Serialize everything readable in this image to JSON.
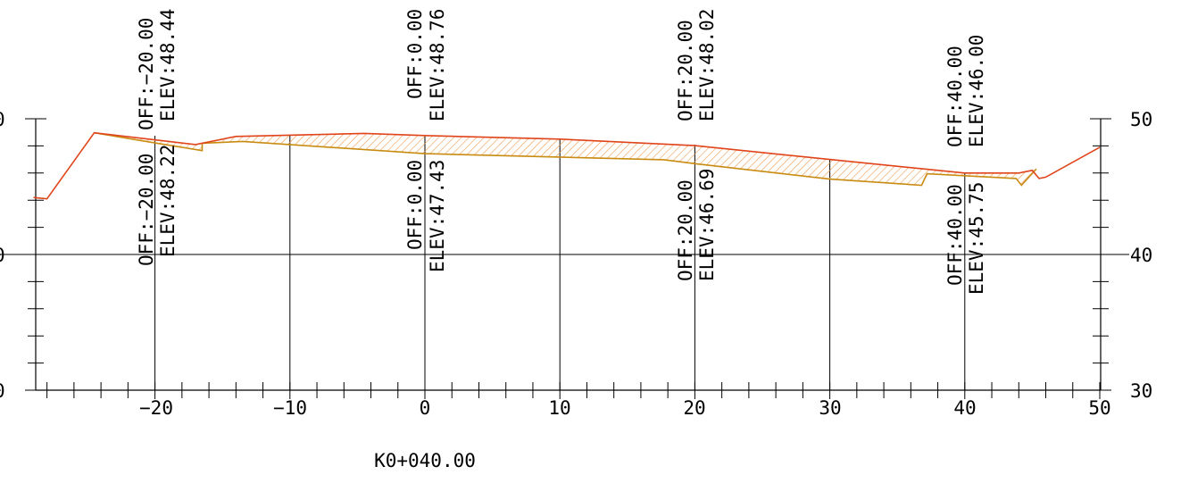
{
  "station": "K0+040.00",
  "axes": {
    "x_ticks": [
      "−20",
      "−10",
      "0",
      "10",
      "20",
      "30",
      "40",
      "50"
    ],
    "y_ticks_right": [
      "50",
      "40",
      "30"
    ],
    "y_ticks_left_partial": [
      "0",
      "0",
      "0"
    ]
  },
  "top_labels": [
    {
      "off": "OFF:−20.00",
      "elev": "ELEV:48.44"
    },
    {
      "off": "OFF:0.00",
      "elev": "ELEV:48.76"
    },
    {
      "off": "OFF:20.00",
      "elev": "ELEV:48.02"
    },
    {
      "off": "OFF:40.00",
      "elev": "ELEV:46.00"
    }
  ],
  "bottom_labels": [
    {
      "off": "OFF:−20.00",
      "elev": "ELEV:48.22"
    },
    {
      "off": "OFF:0.00",
      "elev": "ELEV:47.43"
    },
    {
      "off": "OFF:20.00",
      "elev": "ELEV:46.69"
    },
    {
      "off": "OFF:40.00",
      "elev": "ELEV:45.75"
    }
  ],
  "colors": {
    "design_line": "#e0441b",
    "ground_line": "#c98b12",
    "hatch": "#ef9a4a",
    "axis": "#000000"
  },
  "chart_data": {
    "type": "line",
    "xlim": [
      -29,
      50
    ],
    "ylim": [
      30,
      50
    ],
    "grid_x": [
      -20,
      -10,
      0,
      10,
      20,
      30,
      40,
      50
    ],
    "grid_y": [
      40
    ],
    "series": [
      {
        "x": [
          -29,
          -28,
          -24.5,
          -17,
          -14,
          -4.5,
          0,
          10,
          20,
          30,
          40,
          44,
          45,
          45.5,
          46,
          50
        ],
        "y": [
          44.2,
          44.1,
          48.97,
          48.1,
          48.7,
          48.92,
          48.76,
          48.5,
          48.02,
          47.0,
          46.0,
          46.0,
          46.2,
          45.6,
          45.7,
          47.9
        ]
      },
      {
        "x": [
          -24.5,
          -20,
          -16.5,
          -16.5,
          -13.5,
          0,
          17.7,
          20,
          30,
          36.8,
          37.2,
          43.8,
          44.2,
          45.3
        ],
        "y": [
          48.97,
          48.22,
          47.65,
          48.2,
          48.33,
          47.43,
          46.98,
          46.69,
          45.55,
          45.1,
          45.95,
          45.6,
          45.1,
          46.3
        ]
      }
    ]
  }
}
